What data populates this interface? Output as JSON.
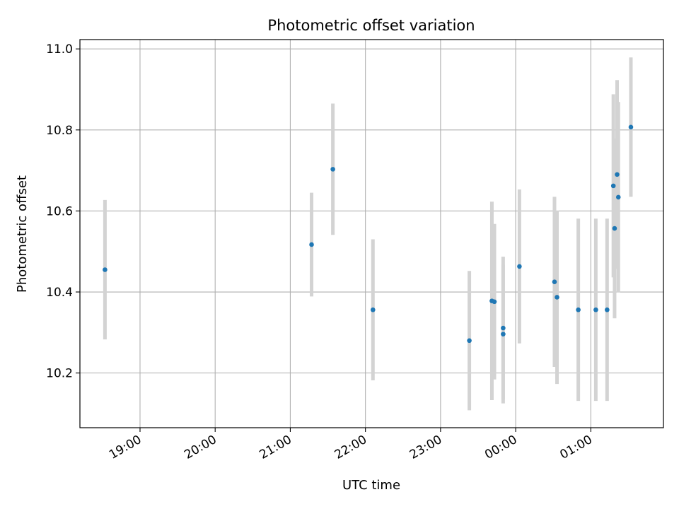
{
  "chart_data": {
    "type": "scatter",
    "title": "Photometric offset variation",
    "xlabel": "UTC time",
    "ylabel": "Photometric offset",
    "x_axis": {
      "unit": "time of day (UTC)",
      "ticks": [
        "19:00",
        "20:00",
        "21:00",
        "22:00",
        "23:00",
        "00:00",
        "01:00"
      ],
      "range": [
        "18:12",
        "01:58"
      ]
    },
    "y_axis": {
      "ticks": [
        "10.2",
        "10.4",
        "10.6",
        "10.8",
        "11.0"
      ],
      "range": [
        10.065,
        11.023
      ]
    },
    "grid": true,
    "legend": "none",
    "colors": {
      "marker": "#1f77b4",
      "errorbar": "#d3d3d3",
      "grid": "#b0b0b0"
    },
    "series": [
      {
        "points": [
          {
            "x": "18:32",
            "y": 10.455,
            "err": 0.172
          },
          {
            "x": "21:17",
            "y": 10.517,
            "err": 0.128
          },
          {
            "x": "21:34",
            "y": 10.703,
            "err": 0.162
          },
          {
            "x": "22:06",
            "y": 10.356,
            "err": 0.174
          },
          {
            "x": "23:23",
            "y": 10.28,
            "err": 0.172
          },
          {
            "x": "23:41",
            "y": 10.378,
            "err": 0.245
          },
          {
            "x": "23:43",
            "y": 10.376,
            "err": 0.192
          },
          {
            "x": "23:50",
            "y": 10.311,
            "err": 0.176
          },
          {
            "x": "23:50",
            "y": 10.296,
            "err": 0.171
          },
          {
            "x": "00:03",
            "y": 10.463,
            "err": 0.19
          },
          {
            "x": "00:31",
            "y": 10.425,
            "err": 0.21
          },
          {
            "x": "00:33",
            "y": 10.387,
            "err": 0.214
          },
          {
            "x": "00:50",
            "y": 10.356,
            "err": 0.225
          },
          {
            "x": "01:04",
            "y": 10.356,
            "err": 0.225
          },
          {
            "x": "01:13",
            "y": 10.356,
            "err": 0.225
          },
          {
            "x": "01:18",
            "y": 10.662,
            "err": 0.226
          },
          {
            "x": "01:19",
            "y": 10.557,
            "err": 0.222
          },
          {
            "x": "01:21",
            "y": 10.69,
            "err": 0.233
          },
          {
            "x": "01:22",
            "y": 10.634,
            "err": 0.235
          },
          {
            "x": "01:32",
            "y": 10.807,
            "err": 0.172
          }
        ]
      }
    ]
  }
}
